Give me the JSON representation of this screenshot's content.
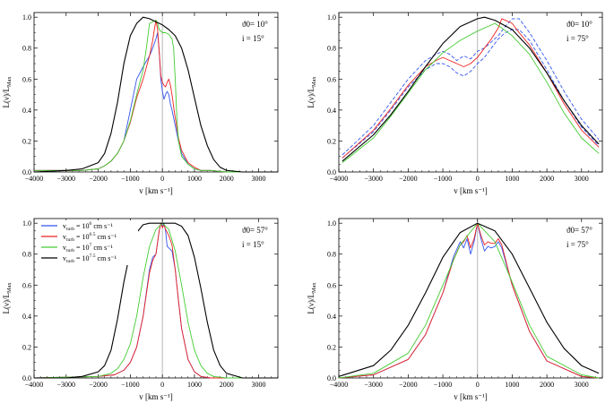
{
  "chart_data": [
    {
      "type": "line",
      "panel": "top-left",
      "annotation_line1": "ϑ0= 10°",
      "annotation_line2": "i = 15°",
      "xlabel": "v [km s⁻¹]",
      "ylabel": "L(ν)/L_Max",
      "xlim": [
        -4000,
        3600
      ],
      "ylim": [
        0,
        1.03
      ],
      "xticks": [
        -4000,
        -3000,
        -2000,
        -1000,
        0,
        1000,
        2000,
        3000
      ],
      "yticks": [
        0.0,
        0.2,
        0.4,
        0.6,
        0.8,
        1.0
      ],
      "vline": 0,
      "series": [
        {
          "name": "v_turb = 10^6 cm s⁻¹",
          "color": "#3355ee",
          "x": [
            -4000,
            -2500,
            -2000,
            -1800,
            -1600,
            -1400,
            -1200,
            -1000,
            -800,
            -600,
            -400,
            -300,
            -200,
            -150,
            -100,
            -50,
            0,
            50,
            100,
            150,
            200,
            250,
            300,
            400,
            500,
            600,
            800,
            1000,
            1200,
            1500,
            2000,
            3600
          ],
          "y": [
            0.01,
            0.01,
            0.02,
            0.04,
            0.07,
            0.12,
            0.2,
            0.4,
            0.6,
            0.68,
            0.75,
            0.8,
            0.86,
            0.9,
            0.78,
            0.6,
            0.52,
            0.47,
            0.5,
            0.52,
            0.5,
            0.44,
            0.4,
            0.3,
            0.2,
            0.12,
            0.05,
            0.02,
            0.01,
            0.01,
            0.0,
            0.0
          ]
        },
        {
          "name": "v_turb = 10^6.5 cm s⁻¹",
          "color": "#ee2222",
          "x": [
            -4000,
            -2500,
            -2000,
            -1800,
            -1600,
            -1400,
            -1200,
            -1000,
            -800,
            -600,
            -400,
            -300,
            -250,
            -200,
            -150,
            -100,
            -50,
            0,
            50,
            100,
            150,
            200,
            250,
            300,
            350,
            400,
            500,
            600,
            800,
            1000,
            1200,
            1500,
            2000,
            3600
          ],
          "y": [
            0.01,
            0.01,
            0.02,
            0.04,
            0.07,
            0.12,
            0.2,
            0.32,
            0.48,
            0.6,
            0.75,
            0.85,
            0.92,
            0.98,
            0.92,
            0.78,
            0.62,
            0.58,
            0.56,
            0.55,
            0.58,
            0.6,
            0.56,
            0.5,
            0.42,
            0.35,
            0.22,
            0.14,
            0.06,
            0.03,
            0.01,
            0.01,
            0.0,
            0.0
          ]
        },
        {
          "name": "v_turb = 10^7 cm s⁻¹",
          "color": "#44cc33",
          "x": [
            -4000,
            -2500,
            -2000,
            -1800,
            -1600,
            -1400,
            -1200,
            -1000,
            -800,
            -600,
            -500,
            -400,
            -300,
            -200,
            -150,
            -100,
            0,
            100,
            200,
            300,
            350,
            400,
            450,
            500,
            600,
            800,
            1000,
            1200,
            1500,
            2000,
            3600
          ],
          "y": [
            0.01,
            0.01,
            0.02,
            0.04,
            0.07,
            0.12,
            0.2,
            0.33,
            0.5,
            0.66,
            0.8,
            0.96,
            0.97,
            0.98,
            0.96,
            0.92,
            0.9,
            0.9,
            0.89,
            0.86,
            0.8,
            0.6,
            0.35,
            0.2,
            0.1,
            0.05,
            0.02,
            0.01,
            0.01,
            0.0,
            0.0
          ]
        },
        {
          "name": "v_turb = 10^7.5 cm s⁻¹",
          "color": "#000000",
          "x": [
            -4000,
            -3000,
            -2500,
            -2000,
            -1800,
            -1600,
            -1400,
            -1200,
            -1000,
            -800,
            -600,
            -400,
            -200,
            0,
            200,
            400,
            600,
            800,
            1000,
            1200,
            1400,
            1600,
            1800,
            2000,
            2500,
            3600
          ],
          "y": [
            0.0,
            0.01,
            0.02,
            0.06,
            0.12,
            0.25,
            0.45,
            0.7,
            0.88,
            0.96,
            1.0,
            0.99,
            0.97,
            0.95,
            0.92,
            0.88,
            0.8,
            0.66,
            0.48,
            0.3,
            0.17,
            0.08,
            0.03,
            0.01,
            0.0,
            0.0
          ]
        }
      ]
    },
    {
      "type": "line",
      "panel": "top-right",
      "annotation_line1": "ϑ0= 10°",
      "annotation_line2": "i = 75°",
      "xlabel": "v [km s⁻¹]",
      "ylabel": "L(ν)/L_Max",
      "xlim": [
        -4000,
        3600
      ],
      "ylim": [
        0,
        1.03
      ],
      "xticks": [
        -4000,
        -3000,
        -2000,
        -1000,
        0,
        1000,
        2000,
        3000
      ],
      "yticks": [
        0.0,
        0.2,
        0.4,
        0.6,
        0.8,
        1.0
      ],
      "vline": 0,
      "series": [
        {
          "name": "v_turb = 10^6 cm s⁻¹ (band upper)",
          "color": "#3355ee",
          "dashed": true,
          "x": [
            -3900,
            -3000,
            -2500,
            -2000,
            -1500,
            -1200,
            -1000,
            -800,
            -600,
            -400,
            -200,
            0,
            200,
            400,
            600,
            800,
            1000,
            1200,
            1500,
            2000,
            2500,
            3000,
            3500
          ],
          "y": [
            0.11,
            0.3,
            0.45,
            0.6,
            0.72,
            0.76,
            0.78,
            0.76,
            0.72,
            0.75,
            0.73,
            0.78,
            0.8,
            0.84,
            0.88,
            0.94,
            0.99,
            0.99,
            0.9,
            0.72,
            0.52,
            0.34,
            0.21
          ]
        },
        {
          "name": "v_turb = 10^6 cm s⁻¹ (band lower)",
          "color": "#3355ee",
          "dashed": true,
          "x": [
            -3900,
            -3000,
            -2500,
            -2000,
            -1500,
            -1200,
            -1000,
            -800,
            -600,
            -400,
            -200,
            0,
            200,
            400,
            600,
            800,
            1000,
            1200,
            1500,
            2000,
            2500,
            3000,
            3500
          ],
          "y": [
            0.09,
            0.26,
            0.4,
            0.55,
            0.66,
            0.7,
            0.7,
            0.68,
            0.64,
            0.62,
            0.65,
            0.7,
            0.74,
            0.8,
            0.86,
            0.9,
            0.92,
            0.92,
            0.85,
            0.66,
            0.46,
            0.29,
            0.17
          ]
        },
        {
          "name": "v_turb = 10^6.5 cm s⁻¹",
          "color": "#ee2222",
          "x": [
            -3900,
            -3000,
            -2500,
            -2000,
            -1500,
            -1200,
            -1000,
            -800,
            -600,
            -400,
            -200,
            0,
            200,
            400,
            600,
            700,
            800,
            1000,
            1200,
            1500,
            2000,
            2500,
            3000,
            3500
          ],
          "y": [
            0.09,
            0.27,
            0.41,
            0.56,
            0.68,
            0.72,
            0.74,
            0.72,
            0.7,
            0.68,
            0.7,
            0.74,
            0.8,
            0.86,
            0.93,
            0.99,
            0.98,
            0.96,
            0.9,
            0.82,
            0.64,
            0.44,
            0.27,
            0.16
          ]
        },
        {
          "name": "v_turb = 10^7 cm s⁻¹",
          "color": "#44cc33",
          "x": [
            -3900,
            -3000,
            -2500,
            -2000,
            -1500,
            -1000,
            -500,
            0,
            300,
            500,
            700,
            1000,
            1500,
            2000,
            2500,
            3000,
            3500
          ],
          "y": [
            0.06,
            0.22,
            0.36,
            0.51,
            0.66,
            0.77,
            0.85,
            0.91,
            0.94,
            0.96,
            0.93,
            0.88,
            0.76,
            0.58,
            0.38,
            0.22,
            0.12
          ]
        },
        {
          "name": "v_turb = 10^7.5 cm s⁻¹",
          "color": "#000000",
          "x": [
            -3900,
            -3000,
            -2500,
            -2000,
            -1500,
            -1000,
            -500,
            0,
            200,
            500,
            1000,
            1500,
            2000,
            2500,
            3000,
            3500
          ],
          "y": [
            0.07,
            0.24,
            0.37,
            0.52,
            0.68,
            0.83,
            0.94,
            0.99,
            1.0,
            0.98,
            0.92,
            0.8,
            0.64,
            0.46,
            0.3,
            0.18
          ]
        }
      ]
    },
    {
      "type": "line",
      "panel": "bottom-left",
      "annotation_line1": "ϑ0= 57°",
      "annotation_line2": "i = 15°",
      "xlabel": "v [km s⁻¹]",
      "ylabel": "L(ν)/L_Max",
      "xlim": [
        -4000,
        3600
      ],
      "ylim": [
        0,
        1.03
      ],
      "xticks": [
        -4000,
        -3000,
        -2000,
        -1000,
        0,
        1000,
        2000,
        3000
      ],
      "yticks": [
        0.0,
        0.2,
        0.4,
        0.6,
        0.8,
        1.0
      ],
      "vline": 0,
      "legend": {
        "entries": [
          {
            "label": "v_turb = 10^6 cm s⁻¹",
            "color": "#3355ee"
          },
          {
            "label": "v_turb = 10^6.5 cm s⁻¹",
            "color": "#ee2222"
          },
          {
            "label": "v_turb = 10^7 cm s⁻¹",
            "color": "#44cc33"
          },
          {
            "label": "v_turb = 10^7.5 cm s⁻¹",
            "color": "#000000"
          }
        ]
      },
      "series": [
        {
          "name": "v_turb = 10^6 cm s⁻¹",
          "color": "#3355ee",
          "x": [
            -4000,
            -2000,
            -1500,
            -1200,
            -1000,
            -800,
            -600,
            -400,
            -300,
            -200,
            -100,
            -50,
            0,
            50,
            100,
            150,
            200,
            250,
            300,
            400,
            500,
            600,
            800,
            1000,
            1200,
            1500,
            2000,
            3600
          ],
          "y": [
            0.0,
            0.01,
            0.02,
            0.05,
            0.1,
            0.2,
            0.4,
            0.7,
            0.78,
            0.8,
            0.95,
            1.0,
            0.98,
            1.0,
            0.95,
            0.85,
            0.84,
            0.83,
            0.82,
            0.7,
            0.5,
            0.32,
            0.12,
            0.04,
            0.01,
            0.0,
            0.0,
            0.0
          ]
        },
        {
          "name": "v_turb = 10^6.5 cm s⁻¹",
          "color": "#ee2222",
          "x": [
            -4000,
            -2000,
            -1500,
            -1200,
            -1000,
            -800,
            -600,
            -400,
            -300,
            -200,
            -100,
            -50,
            0,
            50,
            100,
            200,
            300,
            400,
            500,
            600,
            800,
            1000,
            1200,
            1500,
            2000,
            3600
          ],
          "y": [
            0.0,
            0.01,
            0.02,
            0.05,
            0.1,
            0.2,
            0.4,
            0.68,
            0.76,
            0.8,
            0.95,
            1.0,
            0.97,
            0.99,
            0.96,
            0.92,
            0.86,
            0.7,
            0.5,
            0.32,
            0.12,
            0.04,
            0.01,
            0.0,
            0.0,
            0.0
          ]
        },
        {
          "name": "v_turb = 10^7 cm s⁻¹",
          "color": "#44cc33",
          "x": [
            -4000,
            -2000,
            -1600,
            -1400,
            -1200,
            -1000,
            -800,
            -600,
            -400,
            -200,
            0,
            200,
            400,
            600,
            800,
            1000,
            1200,
            1400,
            1600,
            2000,
            3600
          ],
          "y": [
            0.0,
            0.01,
            0.03,
            0.06,
            0.12,
            0.22,
            0.4,
            0.65,
            0.85,
            0.96,
            1.0,
            0.96,
            0.82,
            0.6,
            0.36,
            0.18,
            0.08,
            0.03,
            0.01,
            0.0,
            0.0
          ]
        },
        {
          "name": "v_turb = 10^7.5 cm s⁻¹",
          "color": "#000000",
          "x": [
            -4000,
            -3000,
            -2500,
            -2000,
            -1800,
            -1600,
            -1400,
            -1200,
            -1000,
            -800,
            -600,
            -400,
            -200,
            0,
            200,
            400,
            600,
            800,
            1000,
            1200,
            1400,
            1600,
            1800,
            2000,
            2500,
            3600
          ],
          "y": [
            0.0,
            0.0,
            0.01,
            0.04,
            0.08,
            0.18,
            0.38,
            0.62,
            0.82,
            0.94,
            0.99,
            1.0,
            1.0,
            1.0,
            1.0,
            1.0,
            0.98,
            0.92,
            0.78,
            0.58,
            0.36,
            0.18,
            0.08,
            0.03,
            0.0,
            0.0
          ]
        }
      ]
    },
    {
      "type": "line",
      "panel": "bottom-right",
      "annotation_line1": "ϑ0= 57°",
      "annotation_line2": "i = 75°",
      "xlabel": "v [km s⁻¹]",
      "ylabel": "L(ν)/L_Max",
      "xlim": [
        -4000,
        3600
      ],
      "ylim": [
        0,
        1.03
      ],
      "xticks": [
        -4000,
        -3000,
        -2000,
        -1000,
        0,
        1000,
        2000,
        3000
      ],
      "yticks": [
        0.0,
        0.2,
        0.4,
        0.6,
        0.8,
        1.0
      ],
      "vline": 0,
      "series": [
        {
          "name": "v_turb = 10^6 cm s⁻¹",
          "color": "#3355ee",
          "x": [
            -4000,
            -3000,
            -2000,
            -1500,
            -1000,
            -700,
            -500,
            -400,
            -300,
            -200,
            -100,
            0,
            100,
            200,
            300,
            400,
            500,
            600,
            700,
            1000,
            1500,
            2000,
            3000,
            3500
          ],
          "y": [
            0.0,
            0.02,
            0.12,
            0.28,
            0.55,
            0.78,
            0.88,
            0.84,
            0.9,
            0.8,
            0.88,
            1.0,
            0.9,
            0.82,
            0.85,
            0.84,
            0.85,
            0.88,
            0.84,
            0.6,
            0.3,
            0.11,
            0.01,
            0.0
          ]
        },
        {
          "name": "v_turb = 10^6.5 cm s⁻¹",
          "color": "#ee2222",
          "x": [
            -4000,
            -3000,
            -2000,
            -1500,
            -1000,
            -700,
            -500,
            -400,
            -300,
            -200,
            -100,
            0,
            100,
            200,
            300,
            400,
            500,
            600,
            700,
            1000,
            1500,
            2000,
            3000,
            3500
          ],
          "y": [
            0.0,
            0.02,
            0.12,
            0.28,
            0.55,
            0.76,
            0.86,
            0.88,
            0.92,
            0.84,
            0.9,
            1.0,
            0.92,
            0.86,
            0.88,
            0.87,
            0.87,
            0.9,
            0.86,
            0.6,
            0.3,
            0.11,
            0.01,
            0.0
          ]
        },
        {
          "name": "v_turb = 10^7 cm s⁻¹",
          "color": "#44cc33",
          "x": [
            -4000,
            -3000,
            -2000,
            -1500,
            -1000,
            -500,
            0,
            500,
            1000,
            1500,
            2000,
            3000,
            3500
          ],
          "y": [
            0.0,
            0.03,
            0.16,
            0.34,
            0.6,
            0.86,
            1.0,
            0.88,
            0.62,
            0.34,
            0.14,
            0.02,
            0.0
          ]
        },
        {
          "name": "v_turb = 10^7.5 cm s⁻¹",
          "color": "#000000",
          "x": [
            -4000,
            -3000,
            -2500,
            -2000,
            -1500,
            -1000,
            -500,
            0,
            500,
            1000,
            1500,
            2000,
            2500,
            3000,
            3500
          ],
          "y": [
            0.01,
            0.08,
            0.18,
            0.34,
            0.55,
            0.78,
            0.94,
            1.0,
            0.95,
            0.8,
            0.58,
            0.36,
            0.19,
            0.08,
            0.03
          ]
        }
      ]
    }
  ]
}
